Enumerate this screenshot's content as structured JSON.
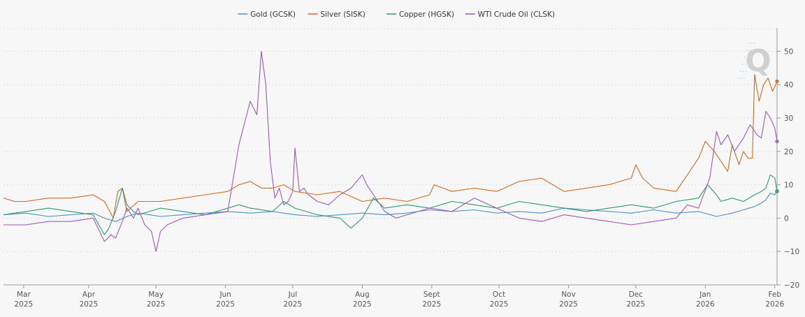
{
  "chart_data": {
    "type": "line",
    "title": "",
    "xlabel": "",
    "ylabel": "",
    "ylim": [
      -20,
      57
    ],
    "y_ticks": [
      -20,
      -10,
      0,
      10,
      20,
      30,
      40,
      50
    ],
    "y_axis_side": "right",
    "grid": "horizontal dotted",
    "legend_position": "top-center",
    "watermark": "Q",
    "x_ticks": [
      {
        "month": "Mar",
        "year": "2025",
        "day": 9
      },
      {
        "month": "Apr",
        "year": "2025",
        "day": 38
      },
      {
        "month": "May",
        "year": "2025",
        "day": 68
      },
      {
        "month": "Jun",
        "year": "2025",
        "day": 99
      },
      {
        "month": "Jul",
        "year": "2025",
        "day": 129
      },
      {
        "month": "Aug",
        "year": "2025",
        "day": 160
      },
      {
        "month": "Sept",
        "year": "2025",
        "day": 191
      },
      {
        "month": "Oct",
        "year": "2025",
        "day": 221
      },
      {
        "month": "Nov",
        "year": "2025",
        "day": 252
      },
      {
        "month": "Dec",
        "year": "2025",
        "day": 282
      },
      {
        "month": "Jan",
        "year": "2026",
        "day": 313
      },
      {
        "month": "Feb",
        "year": "2026",
        "day": 344
      }
    ],
    "x_range": [
      0,
      345
    ],
    "series": [
      {
        "name": "Gold (GCSK)",
        "color": "#4a90c4",
        "x": [
          0,
          10,
          20,
          30,
          40,
          45,
          50,
          55,
          60,
          65,
          70,
          80,
          90,
          100,
          110,
          120,
          130,
          140,
          150,
          160,
          170,
          180,
          190,
          200,
          210,
          220,
          230,
          240,
          250,
          260,
          270,
          280,
          290,
          300,
          310,
          318,
          325,
          330,
          335,
          338,
          340,
          342,
          344,
          345
        ],
        "values": [
          1,
          1.5,
          0.5,
          1,
          1.5,
          0,
          -1,
          0.5,
          1.5,
          1,
          0.5,
          1,
          1.5,
          2,
          1.5,
          2,
          1,
          0.5,
          1,
          1.5,
          1,
          1.5,
          2.5,
          2,
          2.5,
          1.5,
          2,
          1.5,
          3,
          2.5,
          2,
          1.5,
          2.5,
          1.5,
          2,
          0.5,
          1.5,
          2.5,
          3.5,
          4.5,
          5.5,
          7.5,
          7,
          8.2
        ]
      },
      {
        "name": "Silver (SISK)",
        "color": "#d2691e",
        "x": [
          0,
          5,
          10,
          20,
          30,
          40,
          45,
          49,
          51,
          53,
          55,
          60,
          70,
          80,
          90,
          100,
          105,
          110,
          115,
          120,
          125,
          130,
          140,
          150,
          160,
          170,
          180,
          190,
          192,
          200,
          210,
          220,
          230,
          240,
          245,
          250,
          260,
          270,
          280,
          282,
          285,
          290,
          300,
          310,
          313,
          317,
          320,
          323,
          325,
          328,
          330,
          332,
          334,
          335,
          337,
          339,
          341,
          343,
          345
        ],
        "values": [
          6,
          5,
          5,
          6,
          6,
          7,
          5,
          0,
          8,
          9,
          2,
          5,
          5,
          6,
          7,
          8,
          10,
          11,
          9,
          9,
          10,
          8,
          7,
          8,
          5,
          6,
          5,
          7,
          10,
          8,
          9,
          8,
          11,
          12,
          10,
          8,
          9,
          10,
          12,
          16,
          12,
          9,
          8,
          18,
          23,
          20,
          17,
          14,
          22,
          16,
          20,
          18,
          18,
          43,
          35,
          40,
          42,
          38,
          41
        ]
      },
      {
        "name": "Copper (HGSK)",
        "color": "#2a9a6e",
        "x": [
          0,
          10,
          20,
          30,
          40,
          45,
          47,
          50,
          53,
          55,
          58,
          60,
          70,
          80,
          90,
          100,
          105,
          110,
          120,
          125,
          130,
          140,
          150,
          155,
          160,
          165,
          170,
          180,
          190,
          200,
          210,
          220,
          230,
          240,
          250,
          260,
          270,
          280,
          290,
          300,
          310,
          314,
          318,
          320,
          325,
          330,
          335,
          338,
          340,
          342,
          344,
          345
        ],
        "values": [
          1,
          2,
          3,
          2,
          1,
          -5,
          -3,
          2,
          9,
          4,
          2,
          1,
          3,
          2,
          1,
          3,
          4,
          3,
          2,
          5,
          3,
          1,
          0,
          -3,
          0,
          6,
          3,
          4,
          3,
          5,
          4,
          3,
          5,
          4,
          3,
          2,
          3,
          4,
          3,
          5,
          6,
          10,
          7,
          5,
          6,
          5,
          7,
          8,
          9,
          13,
          12,
          8
        ]
      },
      {
        "name": "WTI Crude Oil (CLSK)",
        "color": "#9b59b6",
        "x": [
          0,
          10,
          20,
          30,
          40,
          45,
          48,
          50,
          53,
          55,
          58,
          60,
          63,
          66,
          68,
          70,
          73,
          80,
          90,
          100,
          105,
          110,
          113,
          115,
          117,
          119,
          121,
          123,
          125,
          127,
          129,
          130,
          132,
          134,
          136,
          140,
          145,
          150,
          155,
          160,
          162,
          165,
          170,
          175,
          180,
          190,
          200,
          210,
          220,
          230,
          240,
          250,
          260,
          270,
          280,
          290,
          300,
          305,
          310,
          315,
          318,
          320,
          323,
          326,
          330,
          333,
          336,
          338,
          340,
          342,
          344,
          345
        ],
        "values": [
          -2,
          -2,
          -1,
          -1,
          0,
          -7,
          -5,
          -6,
          -1,
          3,
          0,
          3,
          -2,
          -4,
          -10,
          -4,
          -2,
          0,
          1,
          2,
          22,
          35,
          31,
          50,
          40,
          17,
          6,
          9,
          4,
          5,
          8,
          21,
          8,
          9,
          7,
          5,
          4,
          7,
          9,
          13,
          10,
          7,
          2,
          0,
          1,
          3,
          2,
          6,
          3,
          0,
          -1,
          1,
          0,
          -1,
          -2,
          -1,
          0,
          4,
          3,
          12,
          26,
          22,
          25,
          20,
          24,
          28,
          25,
          24,
          32,
          30,
          27,
          23
        ]
      }
    ]
  }
}
